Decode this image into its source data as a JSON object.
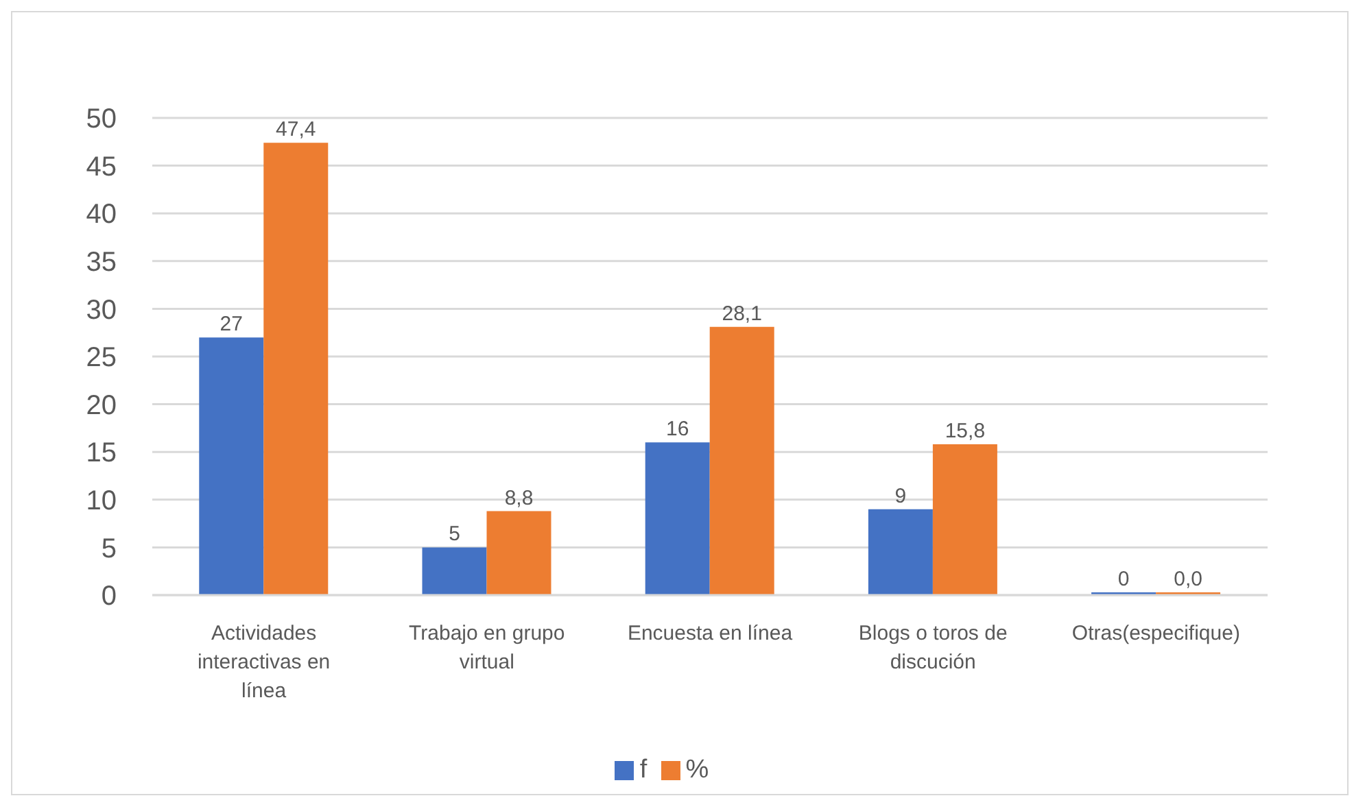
{
  "chart_data": {
    "type": "bar",
    "categories": [
      "Actividades interactivas en línea",
      "Trabajo en grupo virtual",
      "Encuesta en línea",
      "Blogs o toros de discución",
      "Otras(especifique)"
    ],
    "series": [
      {
        "name": "f",
        "color": "#4472c4",
        "values": [
          27,
          5,
          16,
          9,
          0
        ],
        "value_labels": [
          "27",
          "5",
          "16",
          "9",
          "0"
        ]
      },
      {
        "name": "%",
        "color": "#ed7d31",
        "values": [
          47.4,
          8.8,
          28.1,
          15.8,
          0
        ],
        "value_labels": [
          "47,4",
          "8,8",
          "28,1",
          "15,8",
          "0,0"
        ]
      }
    ],
    "ylim": [
      0,
      50
    ],
    "yticks": [
      0,
      5,
      10,
      15,
      20,
      25,
      30,
      35,
      40,
      45,
      50
    ],
    "grid": "y",
    "legend": "bottom"
  }
}
